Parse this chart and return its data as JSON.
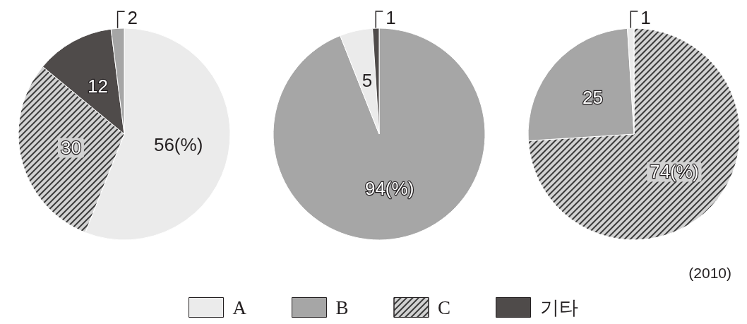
{
  "chart_data": {
    "type": "pie",
    "categories": [
      "A",
      "B",
      "C",
      "기타"
    ],
    "colors": [
      "#ebebeb",
      "#a6a6a6",
      "#d2d2d2",
      "#4f4b4a"
    ],
    "series": [
      {
        "values": [
          56,
          2,
          30,
          12
        ],
        "value_labels": [
          "56(%)",
          "2",
          "30",
          "12"
        ]
      },
      {
        "values": [
          5,
          94,
          null,
          1
        ],
        "value_labels": [
          "5",
          "94(%)",
          null,
          "1"
        ]
      },
      {
        "values": [
          1,
          25,
          74,
          null
        ],
        "value_labels": [
          "1",
          "25",
          "74(%)",
          null
        ]
      }
    ],
    "legend": "bottom",
    "annotations": [
      "(2010)"
    ]
  }
}
